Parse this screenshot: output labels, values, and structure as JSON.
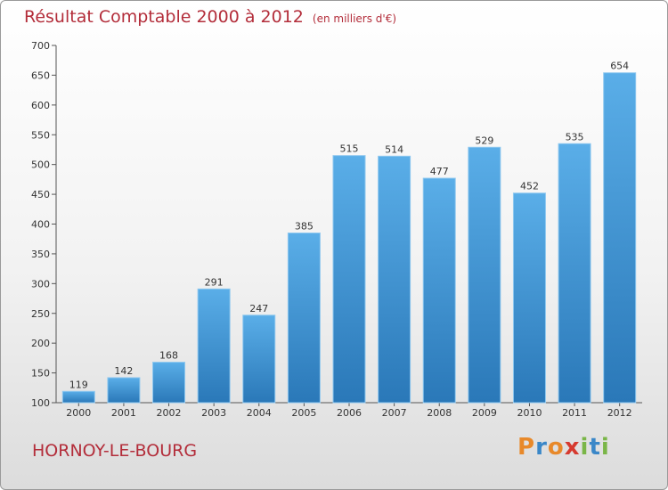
{
  "chart_data": {
    "type": "bar",
    "title": "Résultat Comptable 2000 à 2012",
    "subtitle": "(en milliers d'€)",
    "categories": [
      "2000",
      "2001",
      "2002",
      "2003",
      "2004",
      "2005",
      "2006",
      "2007",
      "2008",
      "2009",
      "2010",
      "2011",
      "2012"
    ],
    "values": [
      119,
      142,
      168,
      291,
      247,
      385,
      515,
      514,
      477,
      529,
      452,
      535,
      654
    ],
    "ylim": [
      100,
      700
    ],
    "yticks": [
      100,
      150,
      200,
      250,
      300,
      350,
      400,
      450,
      500,
      550,
      600,
      650,
      700
    ],
    "xlabel": "",
    "ylabel": "",
    "grid": false
  },
  "location": "HORNOY-LE-BOURG",
  "logo": {
    "letters": [
      "P",
      "r",
      "o",
      "x",
      "i",
      "t",
      "i"
    ],
    "colors": [
      "#e8892a",
      "#3a87c8",
      "#e8892a",
      "#d63a2f",
      "#7ab648",
      "#3a87c8",
      "#7ab648"
    ]
  },
  "colors": {
    "accent": "#b32d3a",
    "bar_top": "#5aaee8",
    "bar_bottom": "#2a78b8"
  }
}
